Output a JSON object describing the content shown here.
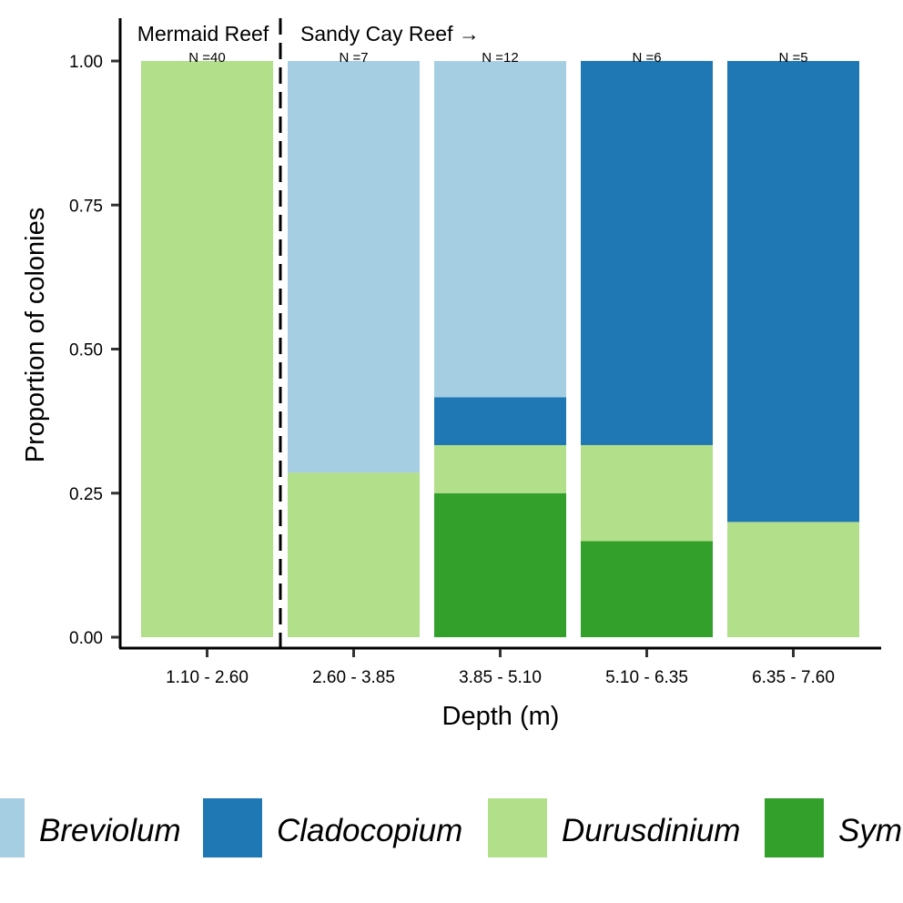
{
  "chart_data": {
    "type": "bar",
    "stacked": true,
    "categories": [
      "1.10 - 2.60",
      "2.60 - 3.85",
      "3.85 - 5.10",
      "5.10 - 6.35",
      "6.35 - 7.60"
    ],
    "counts": [
      "N =40",
      "N =7",
      "N =12",
      "N =6",
      "N =5"
    ],
    "series": [
      {
        "name": "Symbiodinium",
        "color": "#33a02c",
        "values": [
          0,
          0,
          0.25,
          0.1667,
          0
        ]
      },
      {
        "name": "Durusdinium",
        "color": "#b2df8a",
        "values": [
          1.0,
          0.2857,
          0.0833,
          0.1667,
          0.2
        ]
      },
      {
        "name": "Cladocopium",
        "color": "#1f78b4",
        "values": [
          0,
          0,
          0.0833,
          0.6667,
          0.8
        ]
      },
      {
        "name": "Breviolum",
        "color": "#a6cee3",
        "values": [
          0,
          0.7143,
          0.5833,
          0,
          0
        ]
      }
    ],
    "legend_order": [
      "Breviolum",
      "Cladocopium",
      "Durusdinium",
      "Symbiodinium"
    ],
    "legend_labels": [
      "Breviolum",
      "Cladocopium",
      "Durusdinium",
      "Sym"
    ],
    "xlabel": "Depth (m)",
    "ylabel": "Proportion  of colonies",
    "ylim": [
      0,
      1.0
    ],
    "yticks": [
      "0.00",
      "0.25",
      "0.50",
      "0.75",
      "1.00"
    ],
    "grid": false,
    "legend_position": "bottom",
    "annotations": {
      "left_region": "Mermaid Reef",
      "right_region": "Sandy Cay Reef →"
    }
  }
}
